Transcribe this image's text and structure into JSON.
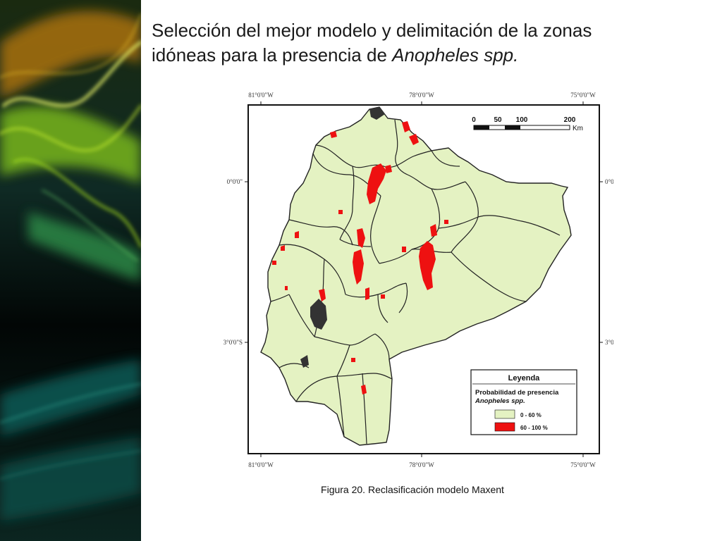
{
  "slide": {
    "title_line1": "Selección del mejor modelo y delimitación de la zonas",
    "title_line2_prefix": "idóneas para la presencia de ",
    "title_line2_italic": "Anopheles spp."
  },
  "map": {
    "longitude_labels": [
      "81°0'0\"W",
      "78°0'0\"W",
      "75°0'0\"W"
    ],
    "latitude_labels": [
      "0°0'0\"",
      "3°0'0\"S"
    ],
    "scale_bar": {
      "ticks": [
        "0",
        "50",
        "100",
        "200"
      ],
      "unit": "Km"
    },
    "legend": {
      "title": "Leyenda",
      "subtitle": "Probabilidad de presencia",
      "species": "Anopheles spp.",
      "classes": [
        {
          "label": "0 - 60 %",
          "color": "#e4f2c2"
        },
        {
          "label": "60 - 100 %",
          "color": "#ee1111"
        }
      ]
    },
    "colors": {
      "land": "#e4f2c2",
      "presence": "#ee1111",
      "water": "#333333",
      "border": "#222222"
    }
  },
  "caption": {
    "label": "Figura 20.",
    "text": " Reclasificación modelo Maxent"
  }
}
